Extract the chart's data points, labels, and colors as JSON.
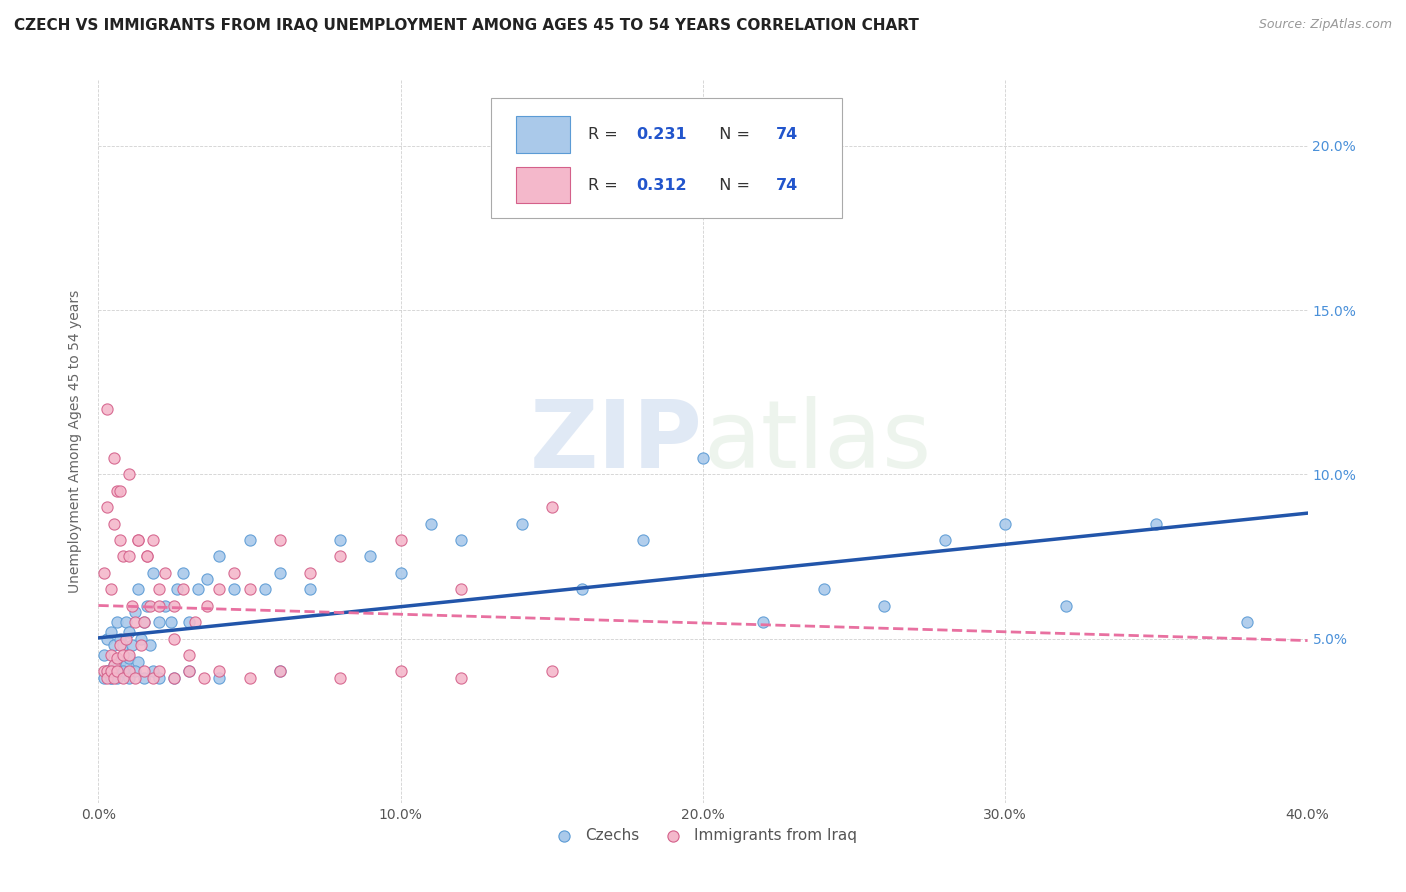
{
  "title": "CZECH VS IMMIGRANTS FROM IRAQ UNEMPLOYMENT AMONG AGES 45 TO 54 YEARS CORRELATION CHART",
  "source": "Source: ZipAtlas.com",
  "ylabel": "Unemployment Among Ages 45 to 54 years",
  "xlabel_czechs": "Czechs",
  "xlabel_iraq": "Immigrants from Iraq",
  "xlim": [
    0.0,
    0.4
  ],
  "ylim": [
    0.0,
    0.22
  ],
  "x_ticks": [
    0.0,
    0.1,
    0.2,
    0.3,
    0.4
  ],
  "x_tick_labels": [
    "0.0%",
    "10.0%",
    "20.0%",
    "30.0%",
    "40.0%"
  ],
  "y_ticks": [
    0.05,
    0.1,
    0.15,
    0.2
  ],
  "y_tick_labels": [
    "5.0%",
    "10.0%",
    "15.0%",
    "20.0%"
  ],
  "color_czechs_fill": "#aac9ea",
  "color_czechs_edge": "#5b9bd5",
  "color_iraq_fill": "#f4b8cb",
  "color_iraq_edge": "#d4608a",
  "color_czechs_line": "#2255aa",
  "color_iraq_line": "#e870a0",
  "czechs_x": [
    0.002,
    0.003,
    0.003,
    0.004,
    0.004,
    0.005,
    0.005,
    0.006,
    0.006,
    0.007,
    0.007,
    0.008,
    0.008,
    0.009,
    0.009,
    0.01,
    0.01,
    0.011,
    0.012,
    0.013,
    0.013,
    0.014,
    0.015,
    0.016,
    0.017,
    0.018,
    0.02,
    0.022,
    0.024,
    0.026,
    0.028,
    0.03,
    0.033,
    0.036,
    0.04,
    0.045,
    0.05,
    0.055,
    0.06,
    0.07,
    0.08,
    0.09,
    0.1,
    0.11,
    0.12,
    0.14,
    0.16,
    0.18,
    0.2,
    0.22,
    0.24,
    0.26,
    0.28,
    0.3,
    0.32,
    0.35,
    0.38,
    0.002,
    0.003,
    0.004,
    0.005,
    0.006,
    0.008,
    0.01,
    0.012,
    0.015,
    0.018,
    0.02,
    0.025,
    0.03,
    0.04,
    0.06
  ],
  "czechs_y": [
    0.045,
    0.04,
    0.05,
    0.038,
    0.052,
    0.042,
    0.048,
    0.041,
    0.055,
    0.043,
    0.05,
    0.04,
    0.048,
    0.042,
    0.055,
    0.044,
    0.052,
    0.048,
    0.058,
    0.043,
    0.065,
    0.05,
    0.055,
    0.06,
    0.048,
    0.07,
    0.055,
    0.06,
    0.055,
    0.065,
    0.07,
    0.055,
    0.065,
    0.068,
    0.075,
    0.065,
    0.08,
    0.065,
    0.07,
    0.065,
    0.08,
    0.075,
    0.07,
    0.085,
    0.08,
    0.085,
    0.065,
    0.08,
    0.105,
    0.055,
    0.065,
    0.06,
    0.08,
    0.085,
    0.06,
    0.085,
    0.055,
    0.038,
    0.04,
    0.038,
    0.04,
    0.038,
    0.04,
    0.038,
    0.04,
    0.038,
    0.04,
    0.038,
    0.038,
    0.04,
    0.038,
    0.04
  ],
  "iraq_x": [
    0.002,
    0.002,
    0.003,
    0.003,
    0.004,
    0.004,
    0.005,
    0.005,
    0.006,
    0.006,
    0.007,
    0.007,
    0.008,
    0.008,
    0.009,
    0.01,
    0.01,
    0.011,
    0.012,
    0.013,
    0.014,
    0.015,
    0.016,
    0.017,
    0.018,
    0.02,
    0.022,
    0.025,
    0.028,
    0.032,
    0.036,
    0.04,
    0.045,
    0.05,
    0.06,
    0.07,
    0.08,
    0.1,
    0.12,
    0.15,
    0.003,
    0.004,
    0.005,
    0.006,
    0.008,
    0.01,
    0.012,
    0.015,
    0.018,
    0.02,
    0.025,
    0.03,
    0.035,
    0.04,
    0.05,
    0.06,
    0.08,
    0.1,
    0.12,
    0.15,
    0.003,
    0.005,
    0.007,
    0.01,
    0.013,
    0.016,
    0.02,
    0.025,
    0.03
  ],
  "iraq_y": [
    0.04,
    0.07,
    0.04,
    0.09,
    0.045,
    0.065,
    0.042,
    0.085,
    0.044,
    0.095,
    0.048,
    0.08,
    0.045,
    0.075,
    0.05,
    0.045,
    0.075,
    0.06,
    0.055,
    0.08,
    0.048,
    0.055,
    0.075,
    0.06,
    0.08,
    0.065,
    0.07,
    0.06,
    0.065,
    0.055,
    0.06,
    0.065,
    0.07,
    0.065,
    0.08,
    0.07,
    0.075,
    0.08,
    0.065,
    0.09,
    0.038,
    0.04,
    0.038,
    0.04,
    0.038,
    0.04,
    0.038,
    0.04,
    0.038,
    0.04,
    0.038,
    0.04,
    0.038,
    0.04,
    0.038,
    0.04,
    0.038,
    0.04,
    0.038,
    0.04,
    0.12,
    0.105,
    0.095,
    0.1,
    0.08,
    0.075,
    0.06,
    0.05,
    0.045
  ]
}
